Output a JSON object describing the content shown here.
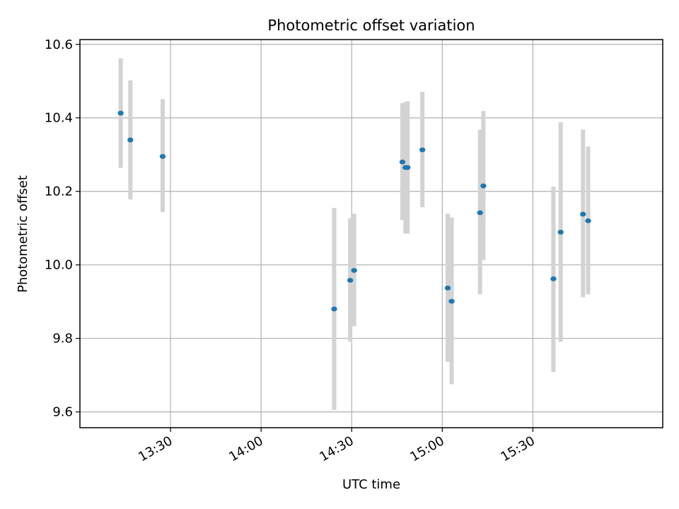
{
  "chart_data": {
    "type": "scatter",
    "title": "Photometric offset variation",
    "xlabel": "UTC time",
    "ylabel": "Photometric offset",
    "xlim": [
      "13:00",
      "16:13"
    ],
    "ylim": [
      9.557,
      10.613
    ],
    "grid": true,
    "x_ticks": [
      "13:30",
      "14:00",
      "14:30",
      "15:00",
      "15:30"
    ],
    "y_ticks": [
      9.6,
      9.8,
      10.0,
      10.2,
      10.4,
      10.6
    ],
    "y_tick_labels": [
      "9.6",
      "9.8",
      "10.0",
      "10.2",
      "10.4",
      "10.6"
    ],
    "series": [
      {
        "name": "offset",
        "color": "#1f77b4",
        "errorbar_color": "#d3d3d3",
        "points": [
          {
            "t": "13:13.5",
            "y": 10.413,
            "ylo": 10.264,
            "yhi": 10.562
          },
          {
            "t": "13:16.7",
            "y": 10.34,
            "ylo": 10.178,
            "yhi": 10.502
          },
          {
            "t": "13:27.4",
            "y": 10.295,
            "ylo": 10.144,
            "yhi": 10.451
          },
          {
            "t": "14:24.2",
            "y": 9.88,
            "ylo": 9.605,
            "yhi": 10.155
          },
          {
            "t": "14:29.5",
            "y": 9.958,
            "ylo": 9.791,
            "yhi": 10.127
          },
          {
            "t": "14:30.8",
            "y": 9.985,
            "ylo": 9.833,
            "yhi": 10.139
          },
          {
            "t": "14:46.8",
            "y": 10.28,
            "ylo": 10.122,
            "yhi": 10.44
          },
          {
            "t": "14:47.8",
            "y": 10.265,
            "ylo": 10.085,
            "yhi": 10.443
          },
          {
            "t": "14:48.5",
            "y": 10.265,
            "ylo": 10.085,
            "yhi": 10.445
          },
          {
            "t": "14:53.4",
            "y": 10.313,
            "ylo": 10.157,
            "yhi": 10.471
          },
          {
            "t": "15:01.8",
            "y": 9.937,
            "ylo": 9.736,
            "yhi": 10.139
          },
          {
            "t": "15:03.1",
            "y": 9.901,
            "ylo": 9.675,
            "yhi": 10.129
          },
          {
            "t": "15:12.5",
            "y": 10.142,
            "ylo": 9.92,
            "yhi": 10.368
          },
          {
            "t": "15:13.6",
            "y": 10.215,
            "ylo": 10.013,
            "yhi": 10.419
          },
          {
            "t": "15:36.8",
            "y": 9.962,
            "ylo": 9.709,
            "yhi": 10.213
          },
          {
            "t": "15:39.2",
            "y": 10.089,
            "ylo": 9.791,
            "yhi": 10.388
          },
          {
            "t": "15:46.6",
            "y": 10.138,
            "ylo": 9.912,
            "yhi": 10.368
          },
          {
            "t": "15:48.3",
            "y": 10.12,
            "ylo": 9.92,
            "yhi": 10.322
          }
        ]
      }
    ]
  }
}
